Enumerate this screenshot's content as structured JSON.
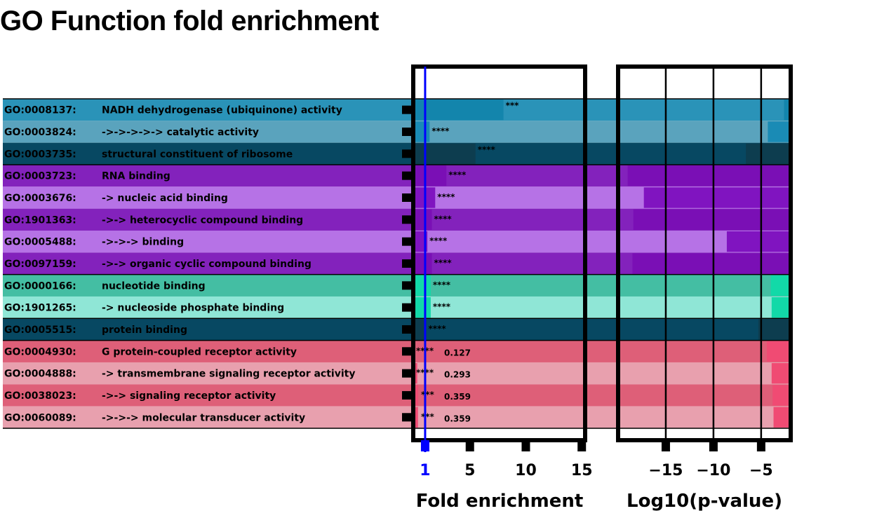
{
  "title": "GO Function fold enrichment",
  "chart_data": {
    "type": "bar",
    "title": "GO Function fold enrichment",
    "rows": [
      {
        "id": "GO:0008137:",
        "name": "NADH dehydrogenase (ubiquinone) activity",
        "fold": 8.0,
        "log10p": -2.6,
        "sig": "***",
        "extra": "",
        "row_color": "#2a93b8",
        "bar_color": "#1385ac"
      },
      {
        "id": "GO:0003824:",
        "name": "->->->->-> catalytic activity",
        "fold": 1.4,
        "log10p": -4.3,
        "sig": "****",
        "extra": "",
        "row_color": "#5aa3bd",
        "bar_color": "#1a8bb5"
      },
      {
        "id": "GO:0003735:",
        "name": "structural constituent of ribosome",
        "fold": 5.5,
        "log10p": -6.6,
        "sig": "****",
        "extra": "",
        "row_color": "#074862",
        "bar_color": "#0d3d4f"
      },
      {
        "id": "GO:0003723:",
        "name": "RNA binding",
        "fold": 2.9,
        "log10p": -19.0,
        "sig": "****",
        "extra": "",
        "row_color": "#8322bc",
        "bar_color": "#7a0fb5"
      },
      {
        "id": "GO:0003676:",
        "name": "-> nucleic acid binding",
        "fold": 1.9,
        "log10p": -17.3,
        "sig": "****",
        "extra": "",
        "row_color": "#b672e6",
        "bar_color": "#8014c0"
      },
      {
        "id": "GO:1901363:",
        "name": "->-> heterocyclic compound binding",
        "fold": 1.6,
        "log10p": -18.4,
        "sig": "****",
        "extra": "",
        "row_color": "#8322bc",
        "bar_color": "#7a0fb5"
      },
      {
        "id": "GO:0005488:",
        "name": "->->-> binding",
        "fold": 1.2,
        "log10p": -8.6,
        "sig": "****",
        "extra": "",
        "row_color": "#b672e6",
        "bar_color": "#8014c0"
      },
      {
        "id": "GO:0097159:",
        "name": "->-> organic cyclic compound binding",
        "fold": 1.6,
        "log10p": -18.5,
        "sig": "****",
        "extra": "",
        "row_color": "#8322bc",
        "bar_color": "#7a0fb5"
      },
      {
        "id": "GO:0000166:",
        "name": "nucleotide binding",
        "fold": 1.5,
        "log10p": -4.0,
        "sig": "****",
        "extra": "",
        "row_color": "#44bea3",
        "bar_color": "#12d9a8"
      },
      {
        "id": "GO:1901265:",
        "name": "-> nucleoside phosphate binding",
        "fold": 1.5,
        "log10p": -3.9,
        "sig": "****",
        "extra": "",
        "row_color": "#8fe6d6",
        "bar_color": "#12d9a8"
      },
      {
        "id": "GO:0005515:",
        "name": "protein binding",
        "fold": 1.1,
        "log10p": -5.3,
        "sig": "****",
        "extra": "",
        "row_color": "#074862",
        "bar_color": "#0d3d4f"
      },
      {
        "id": "GO:0004930:",
        "name": "G protein-coupled receptor activity",
        "fold": 0.127,
        "log10p": -4.4,
        "sig": "****",
        "extra": "0.127",
        "row_color": "#de5f78",
        "bar_color": "#f04b73"
      },
      {
        "id": "GO:0004888:",
        "name": "-> transmembrane signaling receptor activity",
        "fold": 0.293,
        "log10p": -3.9,
        "sig": "****",
        "extra": "0.293",
        "row_color": "#e8a0ae",
        "bar_color": "#f04b73"
      },
      {
        "id": "GO:0038023:",
        "name": "->-> signaling receptor activity",
        "fold": 0.359,
        "log10p": -3.8,
        "sig": "***",
        "extra": "0.359",
        "row_color": "#de5f78",
        "bar_color": "#f04b73"
      },
      {
        "id": "GO:0060089:",
        "name": "->->-> molecular transducer activity",
        "fold": 0.359,
        "log10p": -3.7,
        "sig": "***",
        "extra": "0.359",
        "row_color": "#e8a0ae",
        "bar_color": "#f04b73"
      }
    ],
    "fold_axis": {
      "label": "Fold enrichment",
      "ticks": [
        "1",
        "5",
        "10",
        "15"
      ],
      "tick_values": [
        1,
        5,
        10,
        15
      ],
      "range": [
        0,
        15.3
      ],
      "highlight": "1",
      "highlight_color": "#0000ff"
    },
    "pvalue_axis": {
      "label": "Log10(p-value)",
      "ticks": [
        "−15",
        "−10",
        "−5"
      ],
      "tick_values": [
        -15,
        -10,
        -5
      ],
      "range": [
        -20.0,
        -1.9
      ]
    },
    "grid": true
  }
}
